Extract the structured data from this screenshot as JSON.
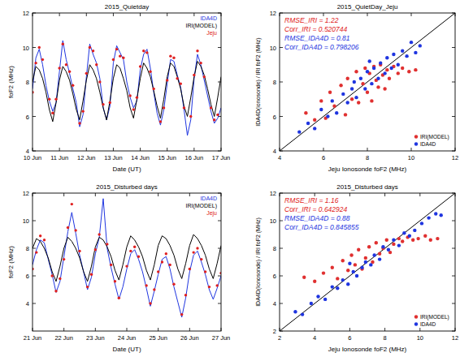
{
  "chart_data": [
    {
      "type": "line",
      "title": "2015_Quietday",
      "x_label": "Date (UT)",
      "y_label": "foF2 (MHz)",
      "x": [
        10,
        10.125,
        10.25,
        10.375,
        10.5,
        10.625,
        10.75,
        10.875,
        11,
        11.125,
        11.25,
        11.375,
        11.5,
        11.625,
        11.75,
        11.875,
        12,
        12.125,
        12.25,
        12.375,
        12.5,
        12.625,
        12.75,
        12.875,
        13,
        13.125,
        13.25,
        13.375,
        13.5,
        13.625,
        13.75,
        13.875,
        14,
        14.125,
        14.25,
        14.375,
        14.5,
        14.625,
        14.75,
        14.875,
        15,
        15.125,
        15.25,
        15.375,
        15.5,
        15.625,
        15.75,
        15.875,
        16,
        16.125,
        16.25,
        16.375,
        16.5,
        16.625,
        16.75,
        16.875,
        17
      ],
      "xlim": [
        10,
        17
      ],
      "xticks": [
        {
          "value": 10,
          "label": "10 Jun"
        },
        {
          "value": 11,
          "label": "11 Jun"
        },
        {
          "value": 12,
          "label": "12 Jun"
        },
        {
          "value": 13,
          "label": "13 Jun"
        },
        {
          "value": 14,
          "label": "14 Jun"
        },
        {
          "value": 15,
          "label": "15 Jun"
        },
        {
          "value": 16,
          "label": "16 Jun"
        },
        {
          "value": 17,
          "label": "17 Jun"
        }
      ],
      "ylim": [
        4,
        12
      ],
      "yticks": [
        4,
        6,
        8,
        10,
        12
      ],
      "legend": "upper right",
      "series": [
        {
          "name": "IDA4D",
          "color": "#1f35e0",
          "type": "line",
          "values": [
            7.6,
            9.4,
            9.9,
            9.0,
            7.8,
            6.9,
            6.3,
            6.8,
            8.6,
            10.4,
            9.3,
            8.5,
            7.6,
            6.8,
            5.4,
            6.1,
            8.3,
            10.2,
            9.6,
            9.1,
            8.2,
            6.5,
            5.8,
            6.6,
            9.1,
            10.1,
            9.7,
            9.3,
            8.0,
            7.1,
            6.5,
            6.9,
            8.7,
            9.6,
            9.9,
            8.8,
            7.4,
            6.2,
            5.5,
            6.4,
            7.9,
            9.3,
            9.2,
            8.4,
            7.7,
            6.4,
            4.9,
            5.8,
            8.2,
            9.6,
            9.0,
            8.1,
            7.2,
            6.3,
            5.6,
            5.9,
            6.5
          ]
        },
        {
          "name": "IRI(MODEL)",
          "color": "#000000",
          "type": "line",
          "values": [
            8.0,
            8.9,
            8.7,
            8.2,
            7.4,
            6.4,
            5.7,
            6.8,
            8.1,
            8.9,
            8.6,
            8.1,
            7.3,
            6.4,
            5.8,
            6.9,
            8.1,
            9.0,
            8.7,
            8.2,
            7.4,
            6.5,
            5.8,
            6.9,
            8.2,
            9.0,
            8.8,
            8.2,
            7.5,
            6.5,
            5.9,
            7.0,
            8.2,
            9.1,
            8.8,
            8.3,
            7.5,
            6.6,
            5.9,
            7.0,
            8.3,
            9.1,
            8.9,
            8.3,
            7.6,
            6.6,
            6.0,
            7.1,
            8.3,
            9.2,
            8.9,
            8.4,
            7.6,
            6.7,
            6.0,
            7.1,
            8.3
          ]
        },
        {
          "name": "Jeju",
          "color": "#e02020",
          "type": "scatter",
          "marker": "circle",
          "values": [
            7.4,
            9.1,
            10.0,
            9.3,
            null,
            7.0,
            6.2,
            7.0,
            8.8,
            10.2,
            9.0,
            8.6,
            7.8,
            null,
            5.6,
            6.3,
            8.5,
            10.0,
            9.8,
            9.0,
            8.0,
            6.7,
            null,
            6.8,
            9.3,
            9.9,
            9.5,
            9.4,
            null,
            7.2,
            6.4,
            7.1,
            8.9,
            9.8,
            9.7,
            8.6,
            7.6,
            null,
            5.7,
            6.5,
            8.1,
            9.5,
            9.4,
            8.2,
            7.9,
            6.5,
            null,
            6.0,
            8.4,
            9.8,
            9.1,
            8.3,
            null,
            6.5,
            5.8,
            6.1,
            null
          ]
        }
      ]
    },
    {
      "type": "scatter",
      "title": "2015_QuietDay_Jeju",
      "x_label": "Jeju Ionosonde foF2 (MHz)",
      "y_label": "IDA4D(ionosonde) / IRI foF2 (MHz)",
      "xlim": [
        4,
        12
      ],
      "xticks": [
        4,
        6,
        8,
        10,
        12
      ],
      "ylim": [
        4,
        12
      ],
      "yticks": [
        4,
        6,
        8,
        10,
        12
      ],
      "legend": "lower right",
      "annotations": [
        {
          "text": "RMSE_IRI = 1.22",
          "color": "#e02020"
        },
        {
          "text": "Corr_IRI = 0.520744",
          "color": "#e02020"
        },
        {
          "text": "RMSE_IDA4D = 0.81",
          "color": "#1f35e0"
        },
        {
          "text": "Corr_IDA4D = 0.798206",
          "color": "#1f35e0"
        }
      ],
      "series": [
        {
          "name": "IRI(MODEL)",
          "color": "#e03030",
          "marker": "circle",
          "x": [
            5.2,
            5.6,
            5.9,
            6.1,
            6.3,
            6.5,
            6.8,
            7.0,
            7.1,
            7.3,
            7.5,
            7.6,
            7.8,
            7.9,
            8.0,
            8.1,
            8.2,
            8.3,
            8.4,
            8.5,
            8.6,
            8.7,
            8.8,
            8.9,
            9.0,
            9.2,
            9.4,
            9.6,
            9.9,
            10.2
          ],
          "values": [
            6.2,
            5.8,
            6.9,
            5.9,
            7.4,
            6.6,
            7.8,
            6.1,
            8.2,
            7.0,
            8.6,
            6.8,
            7.9,
            8.8,
            7.4,
            8.5,
            6.9,
            8.9,
            8.1,
            7.7,
            9.0,
            8.4,
            7.6,
            8.7,
            8.2,
            8.9,
            8.5,
            8.8,
            8.6,
            8.7
          ]
        },
        {
          "name": "IDA4D",
          "color": "#1f35e0",
          "marker": "circle",
          "x": [
            4.9,
            5.3,
            5.6,
            5.9,
            6.2,
            6.4,
            6.6,
            6.9,
            7.1,
            7.3,
            7.5,
            7.7,
            7.9,
            8.0,
            8.2,
            8.3,
            8.5,
            8.6,
            8.8,
            8.9,
            9.1,
            9.2,
            9.4,
            9.6,
            9.8,
            10.0,
            10.2,
            10.4,
            8.1,
            7.4
          ],
          "values": [
            5.1,
            5.6,
            5.3,
            6.4,
            6.0,
            6.9,
            6.2,
            7.3,
            6.8,
            7.6,
            7.1,
            8.2,
            7.6,
            8.6,
            7.9,
            8.8,
            8.2,
            9.1,
            8.5,
            9.4,
            8.8,
            9.6,
            9.0,
            9.8,
            9.5,
            10.3,
            9.7,
            10.1,
            9.2,
            8.0
          ]
        }
      ]
    },
    {
      "type": "line",
      "title": "2015_Disturbed days",
      "x_label": "Date (UT)",
      "y_label": "foF2 (MHz)",
      "x": [
        21,
        21.125,
        21.25,
        21.375,
        21.5,
        21.625,
        21.75,
        21.875,
        22,
        22.125,
        22.25,
        22.375,
        22.5,
        22.625,
        22.75,
        22.875,
        23,
        23.125,
        23.25,
        23.375,
        23.5,
        23.625,
        23.75,
        23.875,
        24,
        24.125,
        24.25,
        24.375,
        24.5,
        24.625,
        24.75,
        24.875,
        25,
        25.125,
        25.25,
        25.375,
        25.5,
        25.625,
        25.75,
        25.875,
        26,
        26.125,
        26.25,
        26.375,
        26.5,
        26.625,
        26.75,
        26.875,
        27
      ],
      "xlim": [
        21,
        27
      ],
      "xticks": [
        {
          "value": 21,
          "label": "21 Jun"
        },
        {
          "value": 22,
          "label": "22 Jun"
        },
        {
          "value": 23,
          "label": "23 Jun"
        },
        {
          "value": 24,
          "label": "24 Jun"
        },
        {
          "value": 25,
          "label": "25 Jun"
        },
        {
          "value": 26,
          "label": "26 Jun"
        },
        {
          "value": 27,
          "label": "27 Jun"
        }
      ],
      "ylim": [
        2,
        12
      ],
      "yticks": [
        4,
        6,
        8,
        10,
        12
      ],
      "legend": "upper right",
      "series": [
        {
          "name": "IDA4D",
          "color": "#1f35e0",
          "type": "line",
          "values": [
            6.8,
            7.9,
            8.6,
            8.4,
            7.2,
            6.1,
            4.8,
            5.6,
            7.4,
            9.2,
            10.6,
            9.1,
            7.5,
            6.3,
            5.0,
            5.9,
            7.6,
            8.8,
            11.6,
            8.0,
            6.6,
            5.4,
            4.3,
            5.2,
            6.5,
            7.6,
            7.9,
            7.2,
            6.3,
            5.1,
            3.8,
            4.9,
            6.1,
            7.2,
            7.4,
            6.5,
            5.2,
            4.1,
            3.0,
            4.4,
            6.3,
            7.5,
            7.8,
            7.0,
            6.1,
            5.0,
            4.3,
            5.1,
            6.0
          ]
        },
        {
          "name": "IRI(MODEL)",
          "color": "#000000",
          "type": "line",
          "values": [
            8.0,
            8.7,
            8.5,
            8.0,
            7.3,
            6.3,
            5.6,
            6.7,
            8.0,
            8.8,
            8.5,
            8.0,
            7.3,
            6.3,
            5.6,
            6.7,
            8.1,
            8.8,
            8.6,
            8.1,
            7.4,
            6.4,
            5.7,
            6.8,
            8.1,
            8.9,
            8.6,
            8.1,
            7.4,
            6.4,
            5.7,
            6.8,
            8.2,
            8.9,
            8.7,
            8.2,
            7.5,
            6.5,
            5.8,
            6.9,
            8.2,
            9.0,
            8.7,
            8.2,
            7.5,
            6.5,
            5.8,
            6.9,
            8.2
          ]
        },
        {
          "name": "Jeju",
          "color": "#e02020",
          "type": "scatter",
          "marker": "circle",
          "values": [
            6.5,
            7.7,
            8.9,
            8.6,
            null,
            6.0,
            4.9,
            5.8,
            7.2,
            9.5,
            11.2,
            9.3,
            7.8,
            null,
            5.2,
            6.1,
            7.9,
            9.0,
            null,
            8.3,
            6.8,
            5.6,
            4.4,
            null,
            6.7,
            7.8,
            8.1,
            7.4,
            null,
            5.3,
            4.0,
            5.0,
            6.3,
            7.0,
            7.6,
            6.8,
            5.4,
            null,
            3.2,
            4.6,
            6.5,
            7.7,
            8.0,
            7.2,
            6.3,
            5.2,
            null,
            5.3,
            6.2
          ]
        }
      ]
    },
    {
      "type": "scatter",
      "title": "2015_Disturbed days",
      "x_label": "Jeju Ionosonde foF2 (MHz)",
      "y_label": "IDA4D(Ionosonde) / IRI foF2 (MHz)",
      "xlim": [
        2,
        12
      ],
      "xticks": [
        2,
        4,
        6,
        8,
        10,
        12
      ],
      "ylim": [
        2,
        12
      ],
      "yticks": [
        2,
        4,
        6,
        8,
        10,
        12
      ],
      "legend": "lower right",
      "annotations": [
        {
          "text": "RMSE_IRI = 1.16",
          "color": "#e02020"
        },
        {
          "text": "Corr_IRI = 0.642924",
          "color": "#e02020"
        },
        {
          "text": "RMSE_IDA4D = 0.88",
          "color": "#1f35e0"
        },
        {
          "text": "Corr_IDA4D = 0.845855",
          "color": "#1f35e0"
        }
      ],
      "series": [
        {
          "name": "IRI(MODEL)",
          "color": "#e03030",
          "marker": "circle",
          "x": [
            3.4,
            4.0,
            4.5,
            5.0,
            5.3,
            5.6,
            5.9,
            6.1,
            6.3,
            6.5,
            6.7,
            6.9,
            7.1,
            7.3,
            7.5,
            7.7,
            7.9,
            8.1,
            8.3,
            8.5,
            8.8,
            9.0,
            9.3,
            9.6,
            9.9,
            10.3,
            10.6,
            11.0
          ],
          "values": [
            5.9,
            5.6,
            6.2,
            6.6,
            5.8,
            7.1,
            6.4,
            7.5,
            6.8,
            7.9,
            6.5,
            7.3,
            8.1,
            7.0,
            8.4,
            7.6,
            8.0,
            8.6,
            7.7,
            8.3,
            8.7,
            8.5,
            8.8,
            8.6,
            8.7,
            8.9,
            8.6,
            8.7
          ]
        },
        {
          "name": "IDA4D",
          "color": "#1f35e0",
          "marker": "circle",
          "x": [
            2.9,
            3.3,
            3.8,
            4.2,
            4.6,
            5.0,
            5.3,
            5.6,
            5.9,
            6.2,
            6.4,
            6.7,
            6.9,
            7.2,
            7.4,
            7.7,
            7.9,
            8.2,
            8.5,
            8.8,
            9.1,
            9.4,
            9.7,
            10.1,
            10.5,
            10.9,
            11.2,
            6.0
          ],
          "values": [
            3.4,
            3.2,
            4.0,
            4.5,
            4.3,
            5.2,
            5.1,
            5.7,
            5.4,
            6.3,
            6.0,
            6.6,
            7.0,
            6.8,
            7.5,
            7.2,
            8.1,
            7.9,
            8.6,
            8.2,
            9.1,
            8.9,
            9.3,
            9.8,
            10.2,
            10.5,
            10.4,
            6.9
          ]
        }
      ]
    }
  ]
}
